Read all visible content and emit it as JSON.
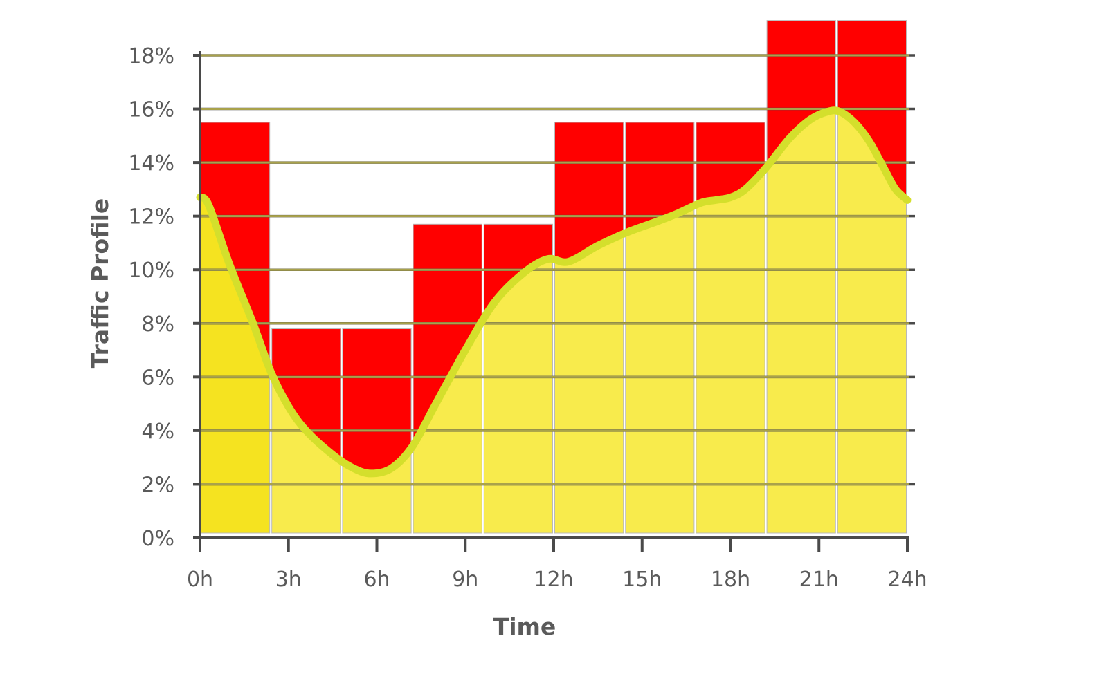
{
  "chart_data": {
    "type": "bar",
    "title": "",
    "xlabel": "Time",
    "ylabel": "Traffic Profile",
    "x_ticks": [
      "0h",
      "3h",
      "6h",
      "9h",
      "12h",
      "15h",
      "18h",
      "21h",
      "24h"
    ],
    "y_ticks": [
      "0%",
      "2%",
      "4%",
      "6%",
      "8%",
      "10%",
      "12%",
      "14%",
      "16%",
      "18%"
    ],
    "xlim": [
      0,
      24
    ],
    "ylim": [
      0,
      18
    ],
    "grid": "horizontal",
    "bar_intervals_hours": [
      [
        0,
        2.4
      ],
      [
        2.4,
        4.8
      ],
      [
        4.8,
        7.2
      ],
      [
        7.2,
        9.6
      ],
      [
        9.6,
        12.0
      ],
      [
        12.0,
        14.4
      ],
      [
        14.4,
        16.8
      ],
      [
        16.8,
        19.2
      ],
      [
        19.2,
        21.6
      ],
      [
        21.6,
        24.0
      ]
    ],
    "bar_tops_percent": [
      15.5,
      7.8,
      7.8,
      11.7,
      11.7,
      15.5,
      15.5,
      15.5,
      19.3,
      19.3
    ],
    "curve_points": {
      "x": [
        0,
        0.3,
        1,
        1.8,
        2.4,
        3,
        3.6,
        4.5,
        5.2,
        5.8,
        6.5,
        7.2,
        8,
        9,
        10,
        11,
        11.8,
        12.5,
        13.5,
        14.5,
        15.5,
        16.2,
        17,
        17.5,
        18,
        18.5,
        19.2,
        20,
        20.7,
        21.3,
        21.7,
        22.2,
        22.7,
        23.2,
        23.6,
        24
      ],
      "y": [
        12.7,
        12.4,
        10.2,
        8.0,
        6.2,
        4.9,
        4.0,
        3.1,
        2.6,
        2.4,
        2.6,
        3.4,
        5.0,
        7.0,
        8.8,
        9.9,
        10.4,
        10.3,
        10.9,
        11.4,
        11.8,
        12.1,
        12.5,
        12.6,
        12.7,
        13.0,
        13.8,
        14.9,
        15.6,
        15.9,
        15.9,
        15.5,
        14.8,
        13.8,
        13.0,
        12.6
      ]
    },
    "colors": {
      "bar_fill": "#f8eb4c",
      "first_bar_fill": "#f5e320",
      "excess_fill": "#ff0000",
      "curve": "#d4df2c",
      "gridline": "#4a4a4a",
      "axis": "#4a4a4a",
      "text": "#5a5a5a"
    }
  }
}
